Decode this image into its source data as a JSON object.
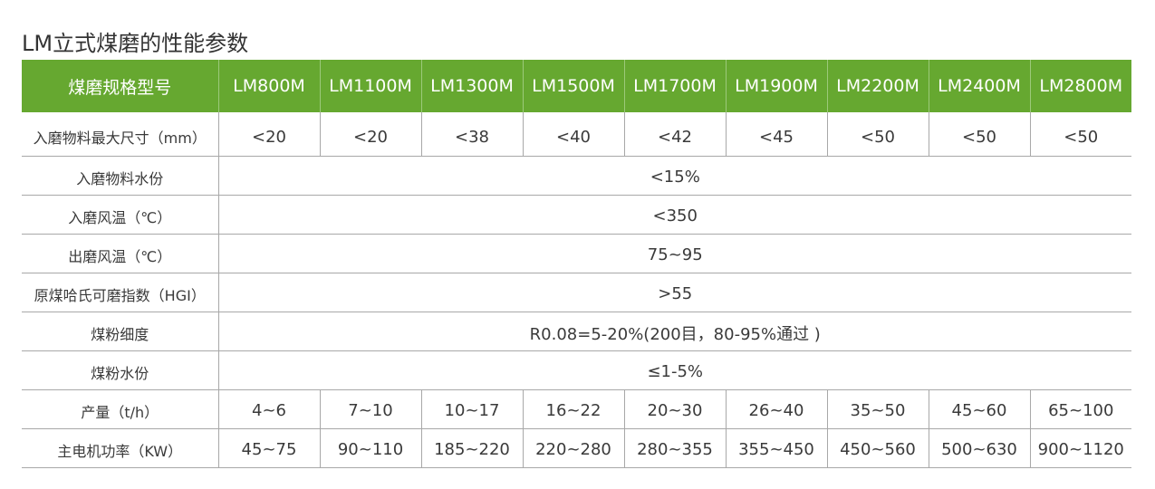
{
  "title": "LM立式煤磨的性能参数",
  "colors": {
    "header_bg": "#66a830",
    "header_text": "#ffffff",
    "grid": "#a8a8a8"
  },
  "table": {
    "header_label": "煤磨规格型号",
    "models": [
      "LM800M",
      "LM1100M",
      "LM1300M",
      "LM1500M",
      "LM1700M",
      "LM1900M",
      "LM2200M",
      "LM2400M",
      "LM2800M"
    ],
    "rows": [
      {
        "label": "入磨物料最大尺寸（mm）",
        "values": [
          "<20",
          "<20",
          "<38",
          "<40",
          "<42",
          "<45",
          "<50",
          "<50",
          "<50"
        ]
      },
      {
        "label": "入磨物料水份",
        "span_value": "<15%"
      },
      {
        "label": "入磨风温（℃）",
        "span_value": "<350"
      },
      {
        "label": "出磨风温（℃）",
        "span_value": "75~95"
      },
      {
        "label": "原煤哈氏可磨指数（HGI）",
        "span_value": ">55"
      },
      {
        "label": "煤粉细度",
        "span_value": "R0.08=5-20%(200目，80-95%通过 )"
      },
      {
        "label": "煤粉水份",
        "span_value": "≤1-5%"
      },
      {
        "label": "产量（t/h）",
        "values": [
          "4~6",
          "7~10",
          "10~17",
          "16~22",
          "20~30",
          "26~40",
          "35~50",
          "45~60",
          "65~100"
        ]
      },
      {
        "label": "主电机功率（KW）",
        "values": [
          "45~75",
          "90~110",
          "185~220",
          "220~280",
          "280~355",
          "355~450",
          "450~560",
          "500~630",
          "900~1120"
        ]
      }
    ]
  }
}
